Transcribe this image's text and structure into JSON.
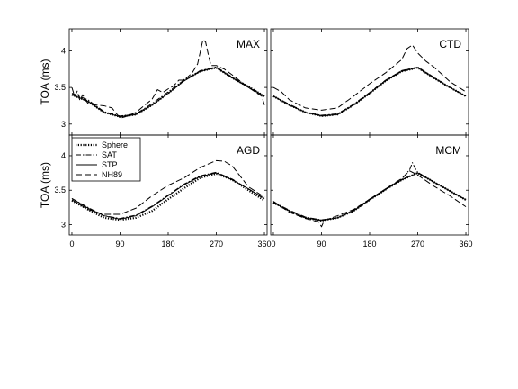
{
  "chart_data": [
    {
      "type": "line",
      "title": "MAX",
      "ylabel": "TOA (ms)",
      "xlim": [
        -5,
        365
      ],
      "ylim": [
        2.85,
        4.3
      ],
      "xticks": [
        0,
        90,
        180,
        270,
        360
      ],
      "yticks": [
        3,
        3.5,
        4
      ],
      "ytick_labels": [
        "3",
        "3.5",
        "4"
      ],
      "series": [
        {
          "name": "Sphere",
          "x": [
            0,
            30,
            60,
            90,
            120,
            150,
            180,
            210,
            240,
            270,
            300,
            330,
            360
          ],
          "y": [
            3.4,
            3.31,
            3.16,
            3.1,
            3.13,
            3.26,
            3.42,
            3.6,
            3.72,
            3.77,
            3.63,
            3.51,
            3.38
          ]
        },
        {
          "name": "SAT",
          "x": [
            0,
            30,
            60,
            90,
            120,
            150,
            180,
            210,
            240,
            270,
            300,
            330,
            360
          ],
          "y": [
            3.42,
            3.33,
            3.17,
            3.11,
            3.14,
            3.28,
            3.44,
            3.6,
            3.73,
            3.78,
            3.64,
            3.51,
            3.38
          ]
        },
        {
          "name": "STP",
          "x": [
            0,
            30,
            60,
            90,
            120,
            150,
            180,
            210,
            240,
            270,
            300,
            330,
            360
          ],
          "y": [
            3.4,
            3.31,
            3.16,
            3.1,
            3.13,
            3.26,
            3.42,
            3.59,
            3.72,
            3.77,
            3.63,
            3.5,
            3.38
          ]
        },
        {
          "name": "NH89",
          "x": [
            0,
            5,
            10,
            15,
            20,
            30,
            45,
            60,
            75,
            90,
            100,
            120,
            150,
            160,
            170,
            180,
            190,
            200,
            210,
            225,
            235,
            245,
            250,
            255,
            260,
            270,
            285,
            300,
            330,
            355,
            360
          ],
          "y": [
            3.5,
            3.38,
            3.45,
            3.32,
            3.4,
            3.28,
            3.26,
            3.25,
            3.22,
            3.08,
            3.1,
            3.16,
            3.34,
            3.47,
            3.43,
            3.48,
            3.52,
            3.6,
            3.6,
            3.7,
            3.82,
            4.15,
            4.12,
            3.95,
            3.8,
            3.8,
            3.75,
            3.67,
            3.5,
            3.38,
            3.26
          ]
        }
      ]
    },
    {
      "type": "line",
      "title": "CTD",
      "xlim": [
        -5,
        365
      ],
      "ylim": [
        2.85,
        4.3
      ],
      "xticks": [
        0,
        90,
        180,
        270,
        360
      ],
      "yticks": [
        3,
        3.5,
        4
      ],
      "series": [
        {
          "name": "Sphere",
          "x": [
            0,
            30,
            60,
            90,
            120,
            150,
            180,
            210,
            240,
            270,
            300,
            330,
            360
          ],
          "y": [
            3.38,
            3.26,
            3.16,
            3.11,
            3.13,
            3.26,
            3.42,
            3.59,
            3.72,
            3.77,
            3.63,
            3.5,
            3.38
          ]
        },
        {
          "name": "SAT",
          "x": [
            0,
            30,
            60,
            90,
            120,
            150,
            180,
            210,
            240,
            270,
            300,
            330,
            360
          ],
          "y": [
            3.38,
            3.27,
            3.16,
            3.12,
            3.14,
            3.27,
            3.43,
            3.6,
            3.73,
            3.78,
            3.64,
            3.5,
            3.38
          ]
        },
        {
          "name": "STP",
          "x": [
            0,
            30,
            60,
            90,
            120,
            150,
            180,
            210,
            240,
            270,
            300,
            330,
            360
          ],
          "y": [
            3.38,
            3.26,
            3.16,
            3.11,
            3.13,
            3.26,
            3.42,
            3.59,
            3.72,
            3.77,
            3.63,
            3.5,
            3.38
          ]
        },
        {
          "name": "NH89",
          "x": [
            0,
            15,
            30,
            60,
            90,
            120,
            150,
            180,
            210,
            240,
            250,
            260,
            270,
            285,
            300,
            330,
            360
          ],
          "y": [
            3.5,
            3.44,
            3.33,
            3.22,
            3.19,
            3.22,
            3.38,
            3.55,
            3.7,
            3.88,
            4.03,
            4.08,
            3.97,
            3.86,
            3.78,
            3.58,
            3.44
          ]
        }
      ]
    },
    {
      "type": "line",
      "title": "AGD",
      "ylabel": "TOA (ms)",
      "xlim": [
        -5,
        365
      ],
      "ylim": [
        2.85,
        4.3
      ],
      "xticks": [
        0,
        90,
        180,
        270,
        360
      ],
      "xtick_labels": [
        "0",
        "90",
        "180",
        "270",
        "360"
      ],
      "yticks": [
        3,
        3.5,
        4
      ],
      "ytick_labels": [
        "3",
        "3.5",
        "4"
      ],
      "series": [
        {
          "name": "Sphere",
          "x": [
            0,
            30,
            60,
            90,
            120,
            150,
            180,
            210,
            240,
            270,
            300,
            330,
            360
          ],
          "y": [
            3.35,
            3.22,
            3.1,
            3.07,
            3.1,
            3.2,
            3.37,
            3.53,
            3.68,
            3.74,
            3.65,
            3.5,
            3.35
          ]
        },
        {
          "name": "SAT",
          "x": [
            0,
            30,
            60,
            90,
            120,
            150,
            180,
            210,
            240,
            270,
            300,
            330,
            360
          ],
          "y": [
            3.38,
            3.25,
            3.13,
            3.09,
            3.14,
            3.27,
            3.43,
            3.59,
            3.71,
            3.76,
            3.66,
            3.52,
            3.37
          ]
        },
        {
          "name": "STP",
          "x": [
            0,
            30,
            60,
            90,
            120,
            150,
            180,
            210,
            240,
            270,
            300,
            330,
            360
          ],
          "y": [
            3.38,
            3.24,
            3.13,
            3.08,
            3.13,
            3.26,
            3.42,
            3.58,
            3.7,
            3.75,
            3.65,
            3.52,
            3.38
          ]
        },
        {
          "name": "NH89",
          "x": [
            0,
            30,
            60,
            90,
            120,
            150,
            180,
            210,
            240,
            270,
            285,
            300,
            330,
            360
          ],
          "y": [
            3.36,
            3.22,
            3.15,
            3.15,
            3.24,
            3.42,
            3.57,
            3.68,
            3.83,
            3.93,
            3.92,
            3.85,
            3.55,
            3.4
          ]
        }
      ]
    },
    {
      "type": "line",
      "title": "MCM",
      "xlim": [
        -5,
        365
      ],
      "ylim": [
        2.85,
        4.3
      ],
      "xticks": [
        0,
        90,
        180,
        270,
        360
      ],
      "xtick_labels": [
        "0",
        "90",
        "180",
        "270",
        "360"
      ],
      "yticks": [
        3,
        3.5,
        4
      ],
      "series": [
        {
          "name": "Sphere",
          "x": [
            0,
            30,
            60,
            90,
            120,
            150,
            180,
            210,
            240,
            270,
            300,
            330,
            360
          ],
          "y": [
            3.32,
            3.2,
            3.1,
            3.06,
            3.1,
            3.2,
            3.36,
            3.51,
            3.65,
            3.75,
            3.62,
            3.49,
            3.36
          ]
        },
        {
          "name": "SAT",
          "x": [
            0,
            30,
            60,
            90,
            120,
            150,
            180,
            210,
            240,
            255,
            260,
            265,
            270,
            300,
            330,
            360
          ],
          "y": [
            3.33,
            3.21,
            3.11,
            3.07,
            3.1,
            3.21,
            3.37,
            3.52,
            3.66,
            3.8,
            3.9,
            3.82,
            3.76,
            3.62,
            3.49,
            3.36
          ]
        },
        {
          "name": "STP",
          "x": [
            0,
            30,
            60,
            90,
            120,
            150,
            180,
            210,
            240,
            270,
            300,
            330,
            360
          ],
          "y": [
            3.32,
            3.2,
            3.1,
            3.06,
            3.1,
            3.2,
            3.36,
            3.51,
            3.65,
            3.75,
            3.62,
            3.49,
            3.36
          ]
        },
        {
          "name": "NH89",
          "x": [
            0,
            30,
            60,
            85,
            90,
            95,
            120,
            150,
            180,
            210,
            240,
            255,
            270,
            300,
            330,
            360
          ],
          "y": [
            3.34,
            3.18,
            3.09,
            3.04,
            2.97,
            3.06,
            3.13,
            3.22,
            3.37,
            3.52,
            3.67,
            3.78,
            3.72,
            3.56,
            3.42,
            3.26
          ]
        }
      ]
    }
  ],
  "legend": {
    "placement": "top-left",
    "entries": [
      "Sphere",
      "SAT",
      "STP",
      "NH89"
    ]
  }
}
